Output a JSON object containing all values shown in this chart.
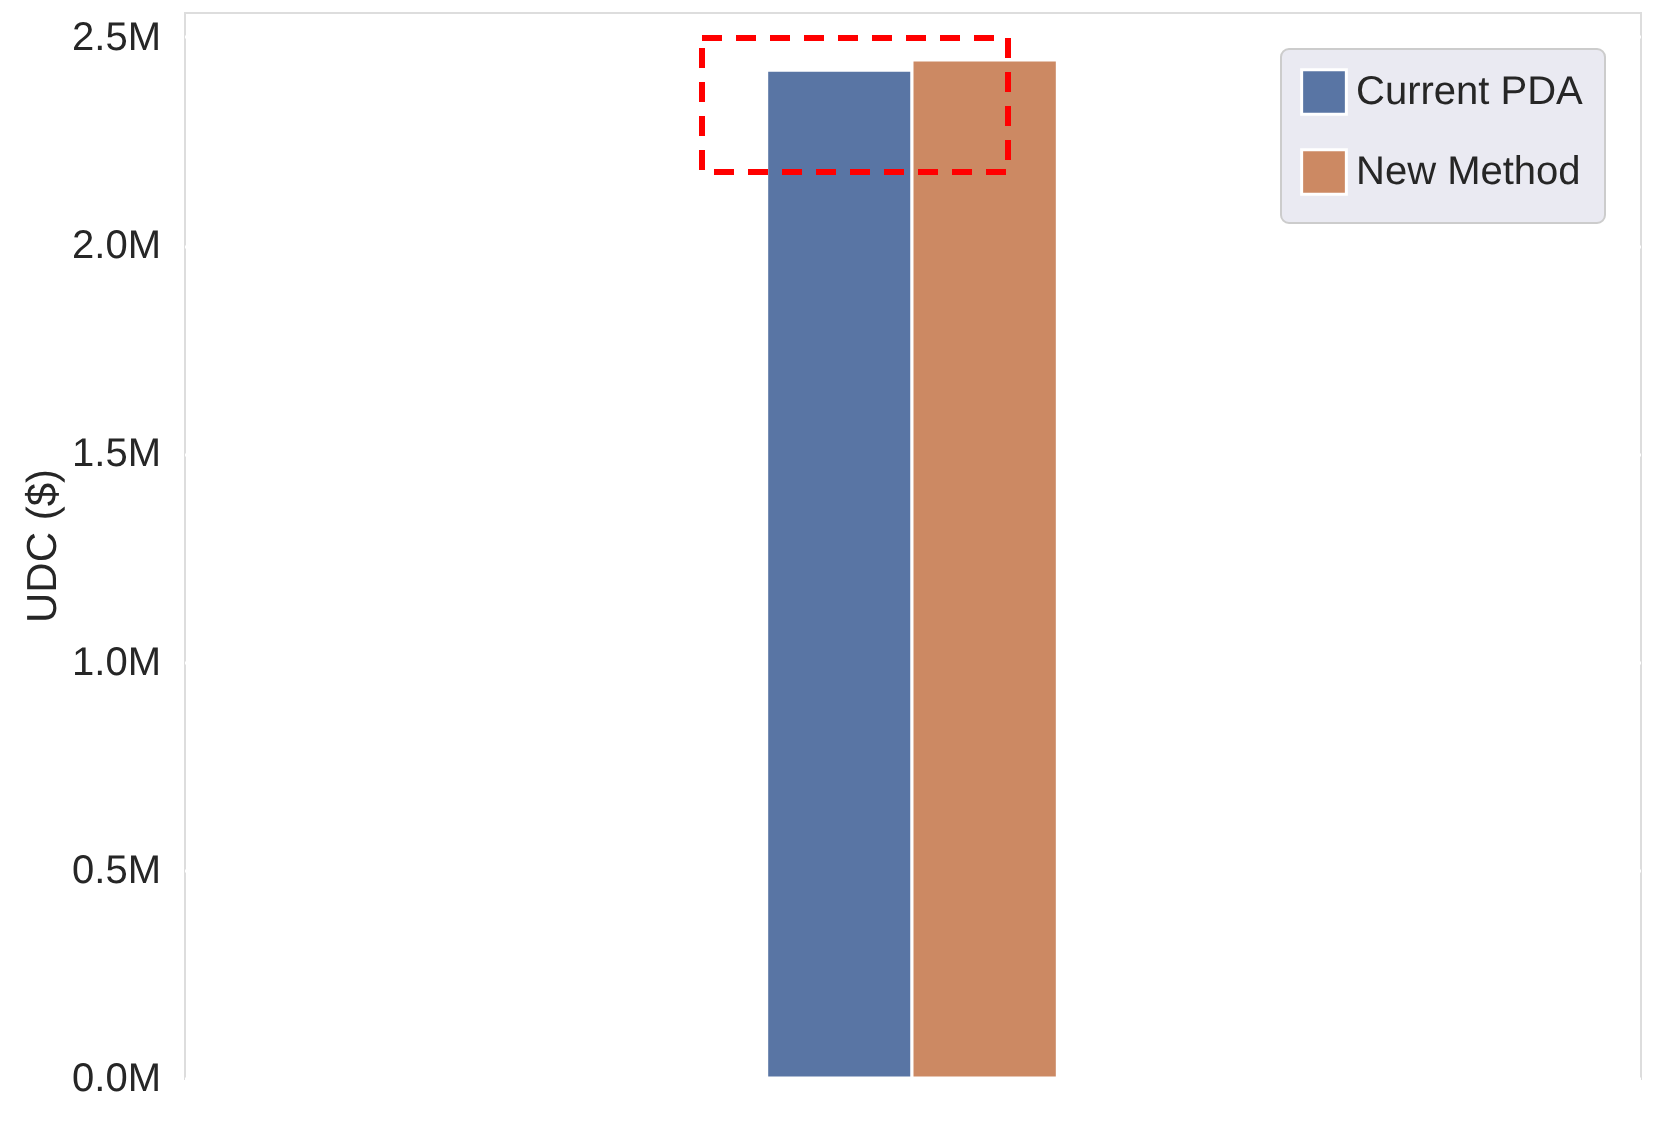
{
  "chart_data": {
    "type": "bar",
    "ylabel": "UDC ($)",
    "categories": [
      null
    ],
    "series": [
      {
        "name": "Current PDA",
        "color": "#5975a4",
        "values": [
          2420000
        ]
      },
      {
        "name": "New Method",
        "color": "#cc8963",
        "values": [
          2445000
        ]
      }
    ],
    "ylim": [
      0,
      2560000
    ],
    "yticks": [
      {
        "value": 0,
        "label": "0.0M"
      },
      {
        "value": 500000,
        "label": "0.5M"
      },
      {
        "value": 1000000,
        "label": "1.0M"
      },
      {
        "value": 1500000,
        "label": "1.5M"
      },
      {
        "value": 2000000,
        "label": "2.0M"
      },
      {
        "value": 2500000,
        "label": "2.5M"
      }
    ],
    "grid": "y",
    "legend": "top right",
    "tick_labels": "y"
  }
}
